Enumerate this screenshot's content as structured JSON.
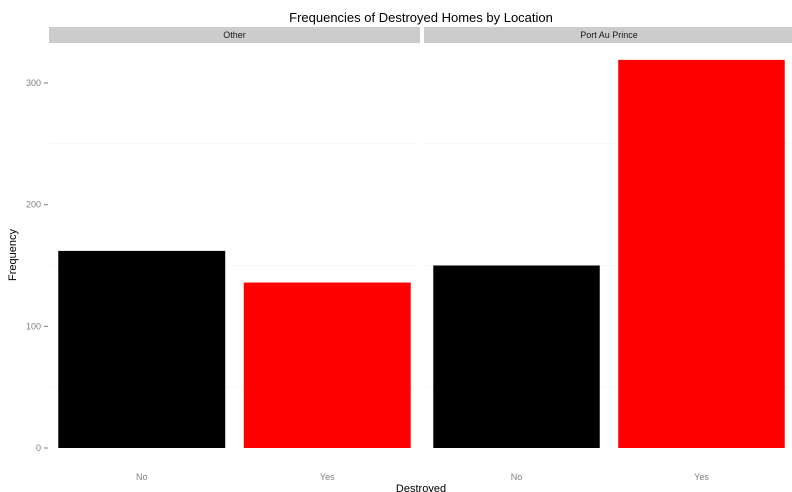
{
  "chart_data": {
    "type": "bar",
    "title": "Frequencies of Destroyed Homes by Location",
    "xlabel": "Destroyed",
    "ylabel": "Frequency",
    "ylim": [
      0,
      325
    ],
    "y_ticks": [
      0,
      100,
      200,
      300
    ],
    "grid": true,
    "legend": "none",
    "colors": {
      "No": "#000000",
      "Yes": "#ff0000"
    },
    "facets": [
      {
        "label": "Other",
        "categories": [
          "No",
          "Yes"
        ],
        "values": [
          162,
          136
        ]
      },
      {
        "label": "Port Au Prince",
        "categories": [
          "No",
          "Yes"
        ],
        "values": [
          150,
          319
        ]
      }
    ]
  }
}
